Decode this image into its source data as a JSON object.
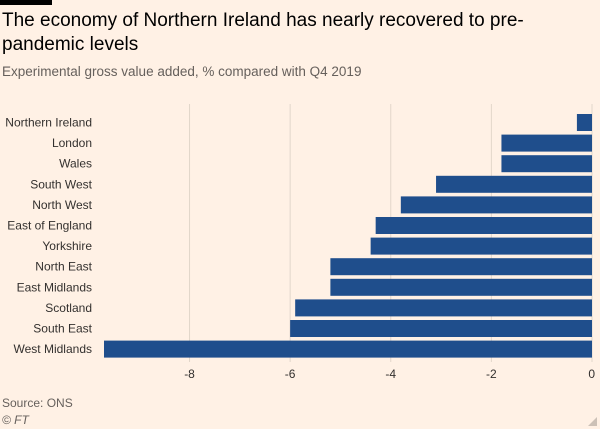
{
  "header": {
    "title": "The economy of Northern Ireland has nearly recovered to pre-pandemic levels",
    "subtitle": "Experimental gross value added, % compared with Q4 2019"
  },
  "footer": {
    "source": "Source: ONS",
    "credit": "© FT"
  },
  "colors": {
    "bar": "#1f4e8c",
    "gridline": "#e2d6ca",
    "background": "#fff1e5"
  },
  "chart_data": {
    "type": "bar",
    "orientation": "horizontal",
    "title": "The economy of Northern Ireland has nearly recovered to pre-pandemic levels",
    "subtitle": "Experimental gross value added, % compared with Q4 2019",
    "categories": [
      "Northern Ireland",
      "London",
      "Wales",
      "South West",
      "North West",
      "East of England",
      "Yorkshire",
      "North East",
      "East Midlands",
      "Scotland",
      "South East",
      "West Midlands"
    ],
    "values": [
      -0.3,
      -1.8,
      -1.8,
      -3.1,
      -3.8,
      -4.3,
      -4.4,
      -5.2,
      -5.2,
      -5.9,
      -6.0,
      -9.7
    ],
    "xlim": [
      -9.7,
      0
    ],
    "xticks": [
      -8,
      -6,
      -4,
      -2,
      0
    ],
    "xtick_labels": [
      "-8",
      "-6",
      "-4",
      "-2",
      "0"
    ],
    "grid": true,
    "legend": "none"
  }
}
